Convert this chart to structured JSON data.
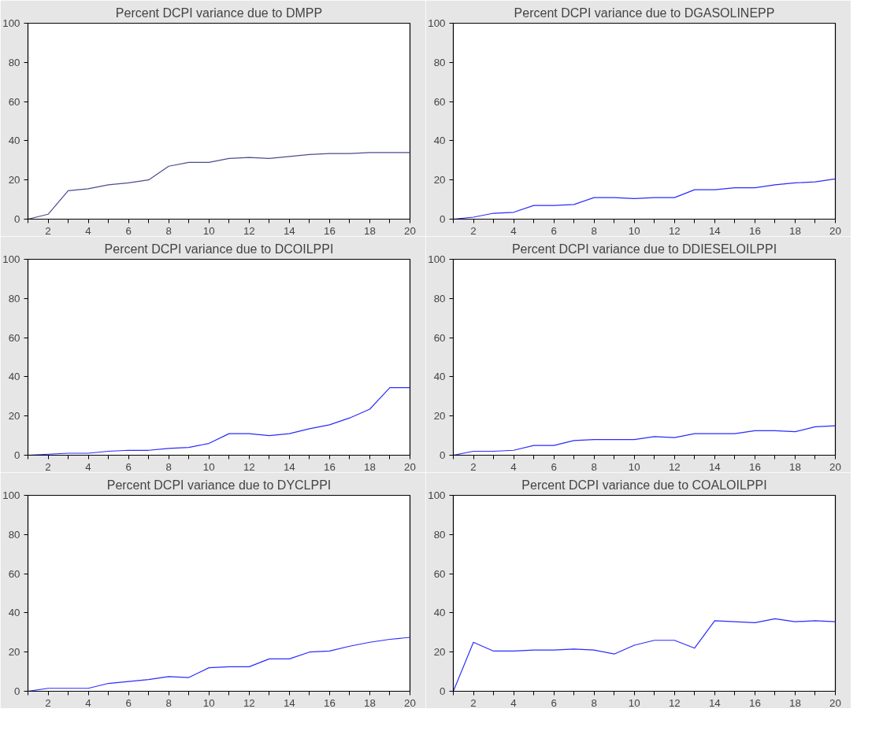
{
  "chart_data": [
    {
      "type": "line",
      "title": "Percent DCPI variance due to DMPP",
      "x": [
        1,
        2,
        3,
        4,
        5,
        6,
        7,
        8,
        9,
        10,
        11,
        12,
        13,
        14,
        15,
        16,
        17,
        18,
        19,
        20
      ],
      "series": [
        {
          "color": "#4b4b8f",
          "values": [
            0,
            2.5,
            14.5,
            15.5,
            17.5,
            18.5,
            20,
            27,
            29,
            29,
            31,
            31.5,
            31,
            32,
            33,
            33.5,
            33.5,
            34,
            34,
            34
          ]
        }
      ],
      "xlim": [
        1,
        20
      ],
      "ylim": [
        0,
        100
      ],
      "yticks": [
        0,
        20,
        40,
        60,
        80,
        100
      ],
      "xticks": [
        {
          "value": 1,
          "label": null
        },
        2,
        {
          "value": 3,
          "label": null
        },
        4,
        {
          "value": 5,
          "label": null
        },
        6,
        {
          "value": 7,
          "label": null
        },
        8,
        {
          "value": 9,
          "label": null
        },
        10,
        {
          "value": 11,
          "label": null
        },
        12,
        {
          "value": 13,
          "label": null
        },
        14,
        {
          "value": 15,
          "label": null
        },
        16,
        {
          "value": 17,
          "label": null
        },
        18,
        {
          "value": 19,
          "label": null
        },
        20
      ],
      "grid": false
    },
    {
      "type": "line",
      "title": "Percent DCPI variance due to DGASOLINEPP",
      "x": [
        1,
        2,
        3,
        4,
        5,
        6,
        7,
        8,
        9,
        10,
        11,
        12,
        13,
        14,
        15,
        16,
        17,
        18,
        19,
        20
      ],
      "series": [
        {
          "color": "#2b2bff",
          "values": [
            0,
            1,
            3,
            3.5,
            7,
            7,
            7.5,
            11,
            11,
            10.5,
            11,
            11,
            15,
            15,
            16,
            16,
            17.5,
            18.5,
            19,
            20.5
          ]
        }
      ],
      "xlim": [
        1,
        20
      ],
      "ylim": [
        0,
        100
      ],
      "yticks": [
        0,
        20,
        40,
        60,
        80,
        100
      ],
      "xticks": [
        {
          "value": 1,
          "label": null
        },
        2,
        {
          "value": 3,
          "label": null
        },
        4,
        {
          "value": 5,
          "label": null
        },
        6,
        {
          "value": 7,
          "label": null
        },
        8,
        {
          "value": 9,
          "label": null
        },
        10,
        {
          "value": 11,
          "label": null
        },
        12,
        {
          "value": 13,
          "label": null
        },
        14,
        {
          "value": 15,
          "label": null
        },
        16,
        {
          "value": 17,
          "label": null
        },
        18,
        {
          "value": 19,
          "label": null
        },
        20
      ],
      "grid": false
    },
    {
      "type": "line",
      "title": "Percent DCPI variance due to DCOILPPI",
      "x": [
        1,
        2,
        3,
        4,
        5,
        6,
        7,
        8,
        9,
        10,
        11,
        12,
        13,
        14,
        15,
        16,
        17,
        18,
        19,
        20
      ],
      "series": [
        {
          "color": "#2b2bff",
          "values": [
            0,
            0.5,
            1,
            1,
            2,
            2.5,
            2.5,
            3.5,
            4,
            6,
            11,
            11,
            10,
            11,
            13.5,
            15.5,
            19,
            23.5,
            34.5,
            34.5
          ]
        }
      ],
      "xlim": [
        1,
        20
      ],
      "ylim": [
        0,
        100
      ],
      "yticks": [
        0,
        20,
        40,
        60,
        80,
        100
      ],
      "xticks": [
        {
          "value": 1,
          "label": null
        },
        2,
        {
          "value": 3,
          "label": null
        },
        4,
        {
          "value": 5,
          "label": null
        },
        6,
        {
          "value": 7,
          "label": null
        },
        8,
        {
          "value": 9,
          "label": null
        },
        10,
        {
          "value": 11,
          "label": null
        },
        12,
        {
          "value": 13,
          "label": null
        },
        14,
        {
          "value": 15,
          "label": null
        },
        16,
        {
          "value": 17,
          "label": null
        },
        18,
        {
          "value": 19,
          "label": null
        },
        20
      ],
      "grid": false
    },
    {
      "type": "line",
      "title": "Percent DCPI variance due to DDIESELOILPPI",
      "x": [
        1,
        2,
        3,
        4,
        5,
        6,
        7,
        8,
        9,
        10,
        11,
        12,
        13,
        14,
        15,
        16,
        17,
        18,
        19,
        20
      ],
      "series": [
        {
          "color": "#2b2bff",
          "values": [
            0,
            2,
            2,
            2.5,
            5,
            5,
            7.5,
            8,
            8,
            8,
            9.5,
            9,
            11,
            11,
            11,
            12.5,
            12.5,
            12,
            14.5,
            15
          ]
        }
      ],
      "xlim": [
        1,
        20
      ],
      "ylim": [
        0,
        100
      ],
      "yticks": [
        0,
        20,
        40,
        60,
        80,
        100
      ],
      "xticks": [
        {
          "value": 1,
          "label": null
        },
        2,
        {
          "value": 3,
          "label": null
        },
        4,
        {
          "value": 5,
          "label": null
        },
        6,
        {
          "value": 7,
          "label": null
        },
        8,
        {
          "value": 9,
          "label": null
        },
        10,
        {
          "value": 11,
          "label": null
        },
        12,
        {
          "value": 13,
          "label": null
        },
        14,
        {
          "value": 15,
          "label": null
        },
        16,
        {
          "value": 17,
          "label": null
        },
        18,
        {
          "value": 19,
          "label": null
        },
        20
      ],
      "grid": false
    },
    {
      "type": "line",
      "title": "Percent DCPI variance due to DYCLPPI",
      "x": [
        1,
        2,
        3,
        4,
        5,
        6,
        7,
        8,
        9,
        10,
        11,
        12,
        13,
        14,
        15,
        16,
        17,
        18,
        19,
        20
      ],
      "series": [
        {
          "color": "#2b2bff",
          "values": [
            0,
            1.5,
            1.5,
            1.5,
            4,
            5,
            6,
            7.5,
            7,
            12,
            12.5,
            12.5,
            16.5,
            16.5,
            20,
            20.5,
            23,
            25,
            26.5,
            27.5
          ]
        }
      ],
      "xlim": [
        1,
        20
      ],
      "ylim": [
        0,
        100
      ],
      "yticks": [
        0,
        20,
        40,
        60,
        80,
        100
      ],
      "xticks": [
        {
          "value": 1,
          "label": null
        },
        2,
        {
          "value": 3,
          "label": null
        },
        4,
        {
          "value": 5,
          "label": null
        },
        6,
        {
          "value": 7,
          "label": null
        },
        8,
        {
          "value": 9,
          "label": null
        },
        10,
        {
          "value": 11,
          "label": null
        },
        12,
        {
          "value": 13,
          "label": null
        },
        14,
        {
          "value": 15,
          "label": null
        },
        16,
        {
          "value": 17,
          "label": null
        },
        18,
        {
          "value": 19,
          "label": null
        },
        20
      ],
      "grid": false
    },
    {
      "type": "line",
      "title": "Percent DCPI variance due to COALOILPPI",
      "x": [
        1,
        2,
        3,
        4,
        5,
        6,
        7,
        8,
        9,
        10,
        11,
        12,
        13,
        14,
        15,
        16,
        17,
        18,
        19,
        20
      ],
      "series": [
        {
          "color": "#2b2bff",
          "values": [
            0,
            25,
            20.5,
            20.5,
            21,
            21,
            21.5,
            21,
            19,
            23.5,
            26,
            26,
            22,
            36,
            35.5,
            35,
            37,
            35.5,
            36,
            35.5
          ]
        }
      ],
      "xlim": [
        1,
        20
      ],
      "ylim": [
        0,
        100
      ],
      "yticks": [
        0,
        20,
        40,
        60,
        80,
        100
      ],
      "xticks": [
        {
          "value": 1,
          "label": null
        },
        2,
        {
          "value": 3,
          "label": null
        },
        4,
        {
          "value": 5,
          "label": null
        },
        6,
        {
          "value": 7,
          "label": null
        },
        8,
        {
          "value": 9,
          "label": null
        },
        10,
        {
          "value": 11,
          "label": null
        },
        12,
        {
          "value": 13,
          "label": null
        },
        14,
        {
          "value": 15,
          "label": null
        },
        16,
        {
          "value": 17,
          "label": null
        },
        18,
        {
          "value": 19,
          "label": null
        },
        20
      ],
      "grid": false
    }
  ]
}
